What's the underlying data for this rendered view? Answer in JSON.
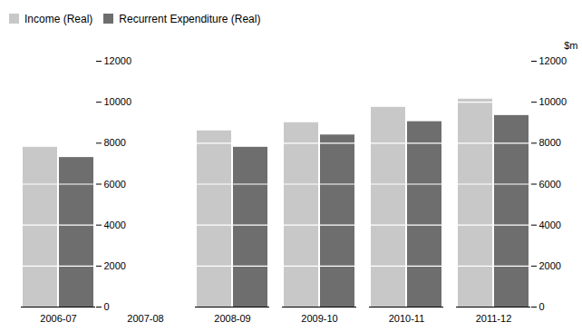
{
  "chart_data": {
    "type": "bar",
    "categories": [
      "2006-07",
      "2007-08",
      "2008-09",
      "2009-10",
      "2010-11",
      "2011-12"
    ],
    "series": [
      {
        "name": "Income (Real)",
        "color": "#c8c8c8",
        "values": [
          7800,
          null,
          8600,
          9000,
          9750,
          10150
        ]
      },
      {
        "name": "Recurrent Expenditure (Real)",
        "color": "#6e6e6e",
        "values": [
          7300,
          null,
          7800,
          8400,
          9050,
          9350
        ]
      }
    ],
    "ylabel": "$m",
    "ylim": [
      0,
      12000
    ],
    "yticks": [
      0,
      2000,
      4000,
      6000,
      8000,
      10000,
      12000
    ],
    "grid": true,
    "legend": "upper left"
  }
}
